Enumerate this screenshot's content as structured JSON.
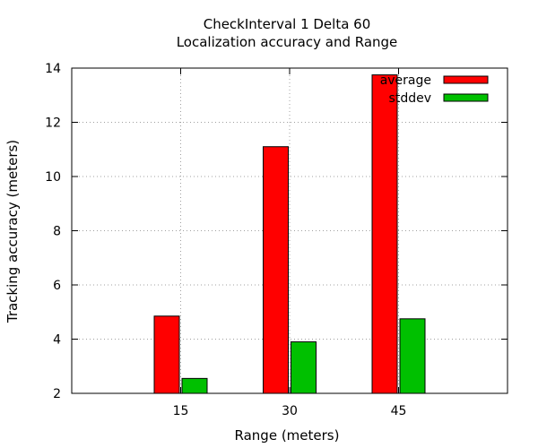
{
  "chart_data": {
    "type": "bar",
    "title": "CheckInterval 1 Delta 60",
    "subtitle": "Localization accuracy and Range",
    "xlabel": "Range (meters)",
    "ylabel": "Tracking accuracy (meters)",
    "categories": [
      "15",
      "30",
      "45"
    ],
    "series": [
      {
        "name": "average",
        "color": "#ff0000",
        "values": [
          4.85,
          11.1,
          13.75
        ]
      },
      {
        "name": "stddev",
        "color": "#00c000",
        "values": [
          2.55,
          3.9,
          4.75
        ]
      }
    ],
    "ylim": [
      2,
      14
    ],
    "yticks": [
      2,
      4,
      6,
      8,
      10,
      12,
      14
    ],
    "grid": true,
    "legend_position": "top-right"
  }
}
